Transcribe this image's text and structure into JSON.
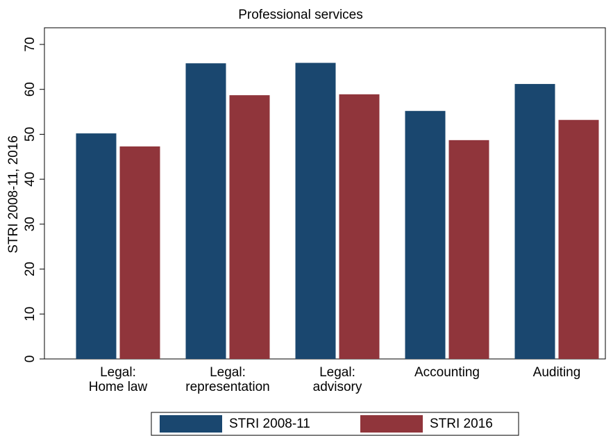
{
  "chart_data": {
    "type": "bar",
    "title": "Professional services",
    "y_label": "STRI 2008-11, 2016",
    "categories": [
      "Legal:\nHome law",
      "Legal:\nrepresentation",
      "Legal:\nadvisory",
      "Accounting",
      "Auditing"
    ],
    "series": [
      {
        "name": "STRI 2008-11",
        "color": "#1a476f",
        "values": [
          50.2,
          65.8,
          65.9,
          55.2,
          61.2
        ]
      },
      {
        "name": "STRI 2016",
        "color": "#90353b",
        "values": [
          47.3,
          58.7,
          58.9,
          48.7,
          53.2
        ]
      }
    ],
    "ylim": [
      0,
      70
    ],
    "yticks": [
      0,
      10,
      20,
      30,
      40,
      50,
      60,
      70
    ]
  }
}
